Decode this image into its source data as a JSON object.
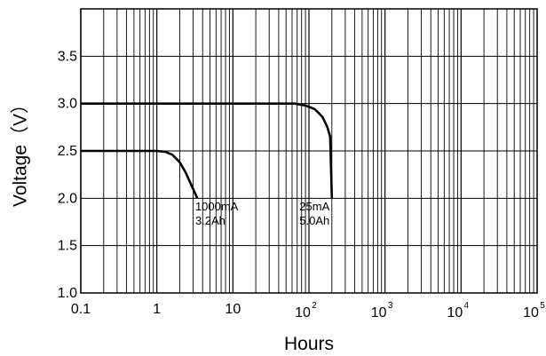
{
  "chart_data": {
    "type": "line",
    "xlabel": "Hours",
    "ylabel": "Voltage（V）",
    "xscale": "log",
    "xlim": [
      0.1,
      100000
    ],
    "ylim": [
      1.0,
      4.0
    ],
    "grid": true,
    "x_ticks": [
      {
        "value": 0.1,
        "label": "0.1"
      },
      {
        "value": 1,
        "label": "1"
      },
      {
        "value": 10,
        "label": "10"
      },
      {
        "value": 100,
        "base": "10",
        "exp": "2"
      },
      {
        "value": 1000,
        "base": "10",
        "exp": "3"
      },
      {
        "value": 10000,
        "base": "10",
        "exp": "4"
      },
      {
        "value": 100000,
        "base": "10",
        "exp": "5"
      }
    ],
    "y_ticks": [
      "1.0",
      "1.5",
      "2.0",
      "2.5",
      "3.0",
      "3.5"
    ],
    "y_tick_values": [
      1.0,
      1.5,
      2.0,
      2.5,
      3.0,
      3.5
    ],
    "series": [
      {
        "x": [
          0.1,
          0.5,
          1.0,
          1.3,
          1.6,
          2.0,
          2.4,
          2.8,
          3.2,
          3.4
        ],
        "y": [
          2.5,
          2.5,
          2.5,
          2.49,
          2.46,
          2.38,
          2.27,
          2.15,
          2.05,
          2.0
        ]
      },
      {
        "x": [
          0.1,
          10,
          50,
          65,
          90,
          120,
          150,
          175,
          190,
          200
        ],
        "y": [
          3.0,
          3.0,
          3.0,
          3.0,
          2.98,
          2.94,
          2.86,
          2.75,
          2.65,
          2.0
        ]
      }
    ],
    "annotations": [
      {
        "lines": [
          "1000mA",
          "3.2Ah"
        ],
        "x": 3.2,
        "y": 1.87
      },
      {
        "lines": [
          "25mA",
          "5.0Ah"
        ],
        "x": 75,
        "y": 1.87
      }
    ]
  }
}
